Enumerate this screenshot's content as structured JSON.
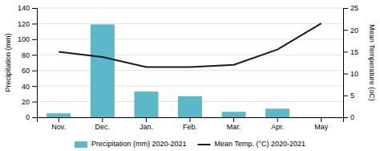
{
  "chart_data": {
    "type": "bar",
    "categories": [
      "Nov.",
      "Dec.",
      "Jan.",
      "Feb.",
      "Mar.",
      "Apr.",
      "May"
    ],
    "series": [
      {
        "name": "Precipitation (mm) 2020-2021",
        "type": "bar",
        "color": "#5bb8c8",
        "values": [
          5,
          119,
          33,
          27,
          7,
          11,
          0
        ]
      },
      {
        "name": "Mean Temp. (°C) 2020-2021",
        "type": "line",
        "color": "#1a1a1a",
        "axis": "y2",
        "values": [
          15.0,
          13.8,
          11.5,
          11.5,
          12.0,
          15.5,
          21.5
        ]
      }
    ],
    "ylabel": "Precipitation (mm)",
    "y2label": "Mean Temperature (oC)",
    "ylim": [
      0,
      140
    ],
    "yticks": [
      0,
      20,
      40,
      60,
      80,
      100,
      120,
      140
    ],
    "y2lim": [
      0,
      25
    ],
    "y2ticks": [
      0,
      5,
      10,
      15,
      20,
      25
    ],
    "grid": true,
    "legend": "bottom"
  }
}
